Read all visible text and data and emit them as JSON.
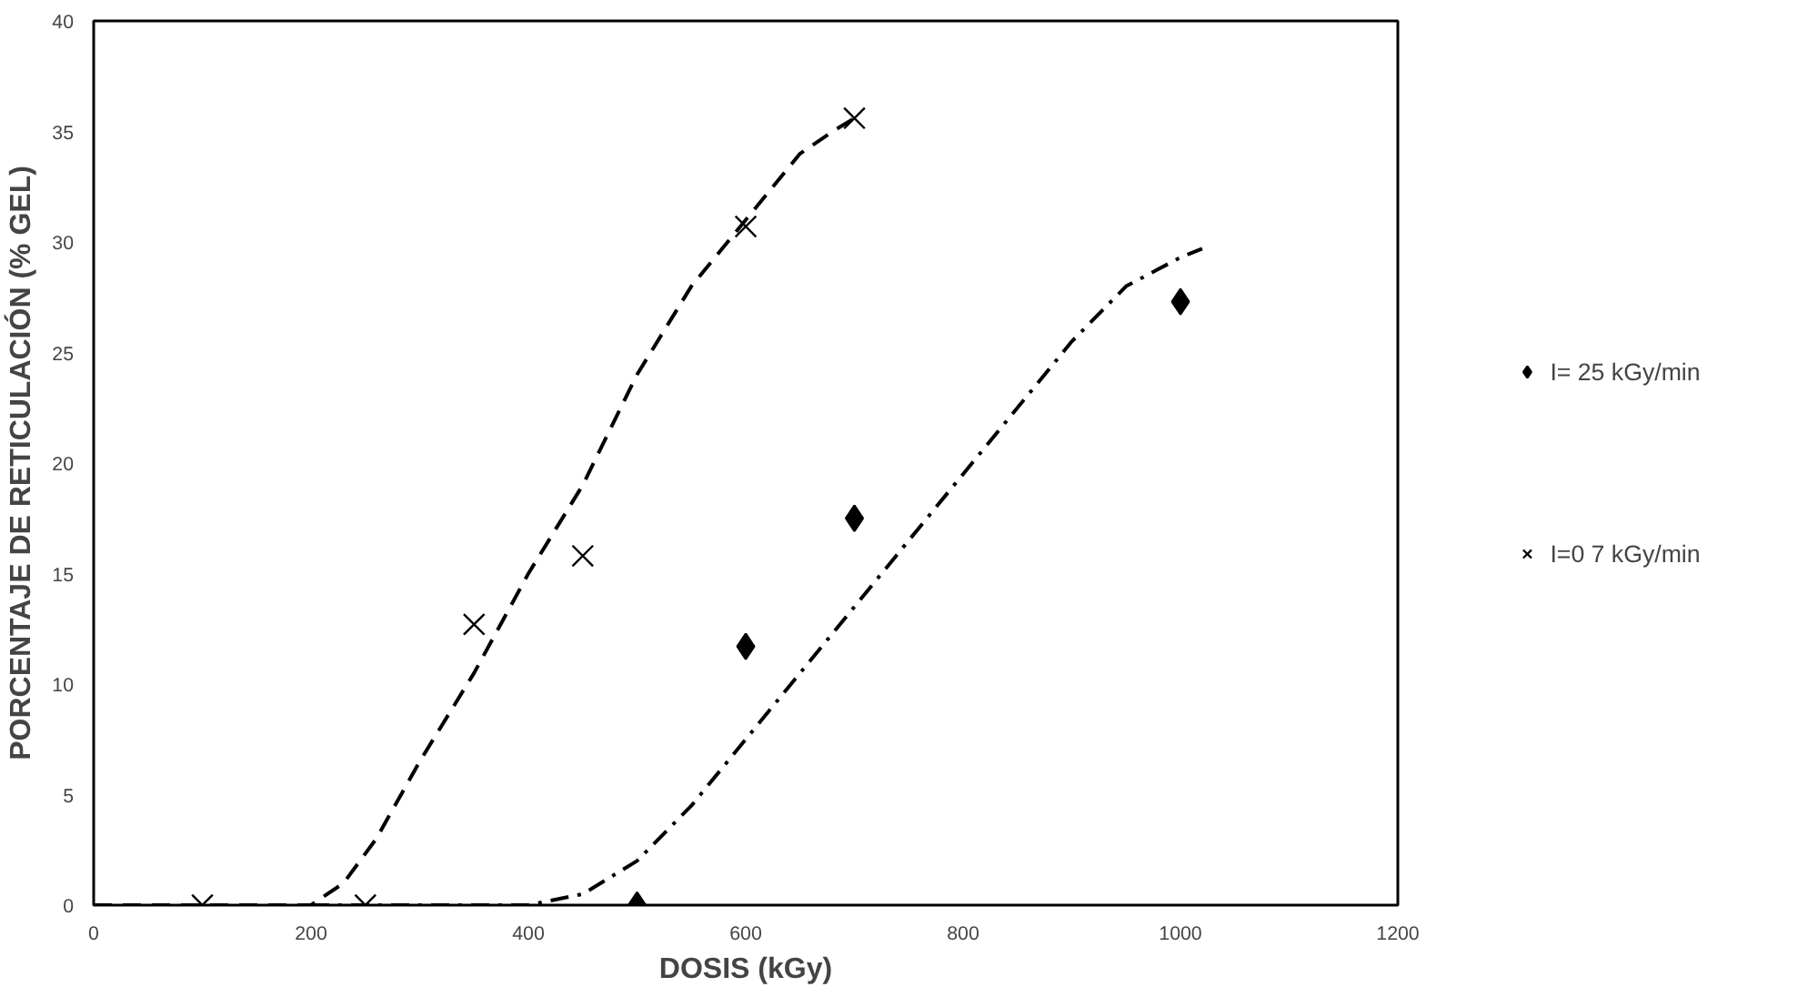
{
  "chart_data": {
    "type": "scatter",
    "xlabel": "DOSIS (kGy)",
    "ylabel": "PORCENTAJE DE RETICULACIÓN (% GEL)",
    "xlim": [
      0,
      1200
    ],
    "ylim": [
      0,
      40
    ],
    "xticks": [
      0,
      200,
      400,
      600,
      800,
      1000,
      1200
    ],
    "yticks": [
      0,
      5,
      10,
      15,
      20,
      25,
      30,
      35,
      40
    ],
    "grid": false,
    "legend": "right",
    "series": [
      {
        "name": "I= 25 kGy/min",
        "color": "#000000",
        "marker": "diamond",
        "x": [
          500,
          600,
          700,
          1000
        ],
        "values": [
          0,
          11.7,
          17.5,
          27.3
        ]
      },
      {
        "name": "I=0 7 kGy/min",
        "color": "#000000",
        "marker": "cross",
        "x": [
          100,
          250,
          350,
          450,
          600,
          700
        ],
        "values": [
          0,
          0,
          12.7,
          15.8,
          30.7,
          35.6
        ]
      },
      {
        "type": "line",
        "color": "#000000",
        "line_style": "dashed",
        "x": [
          0,
          100,
          150,
          200,
          230,
          260,
          300,
          350,
          400,
          450,
          500,
          550,
          600,
          650,
          680,
          700
        ],
        "values": [
          0,
          0,
          0,
          0,
          1,
          3,
          6.5,
          10.5,
          15,
          19,
          24,
          28,
          31,
          34,
          35,
          35.6
        ]
      },
      {
        "type": "line",
        "color": "#000000",
        "line_style": "dashdot",
        "x": [
          200,
          300,
          400,
          450,
          500,
          550,
          600,
          650,
          700,
          750,
          800,
          850,
          900,
          950,
          1000,
          1020
        ],
        "values": [
          0,
          0,
          0,
          0.5,
          2,
          4.5,
          7.5,
          10.5,
          13.5,
          16.5,
          19.5,
          22.5,
          25.5,
          28,
          29.3,
          29.7
        ]
      }
    ]
  }
}
